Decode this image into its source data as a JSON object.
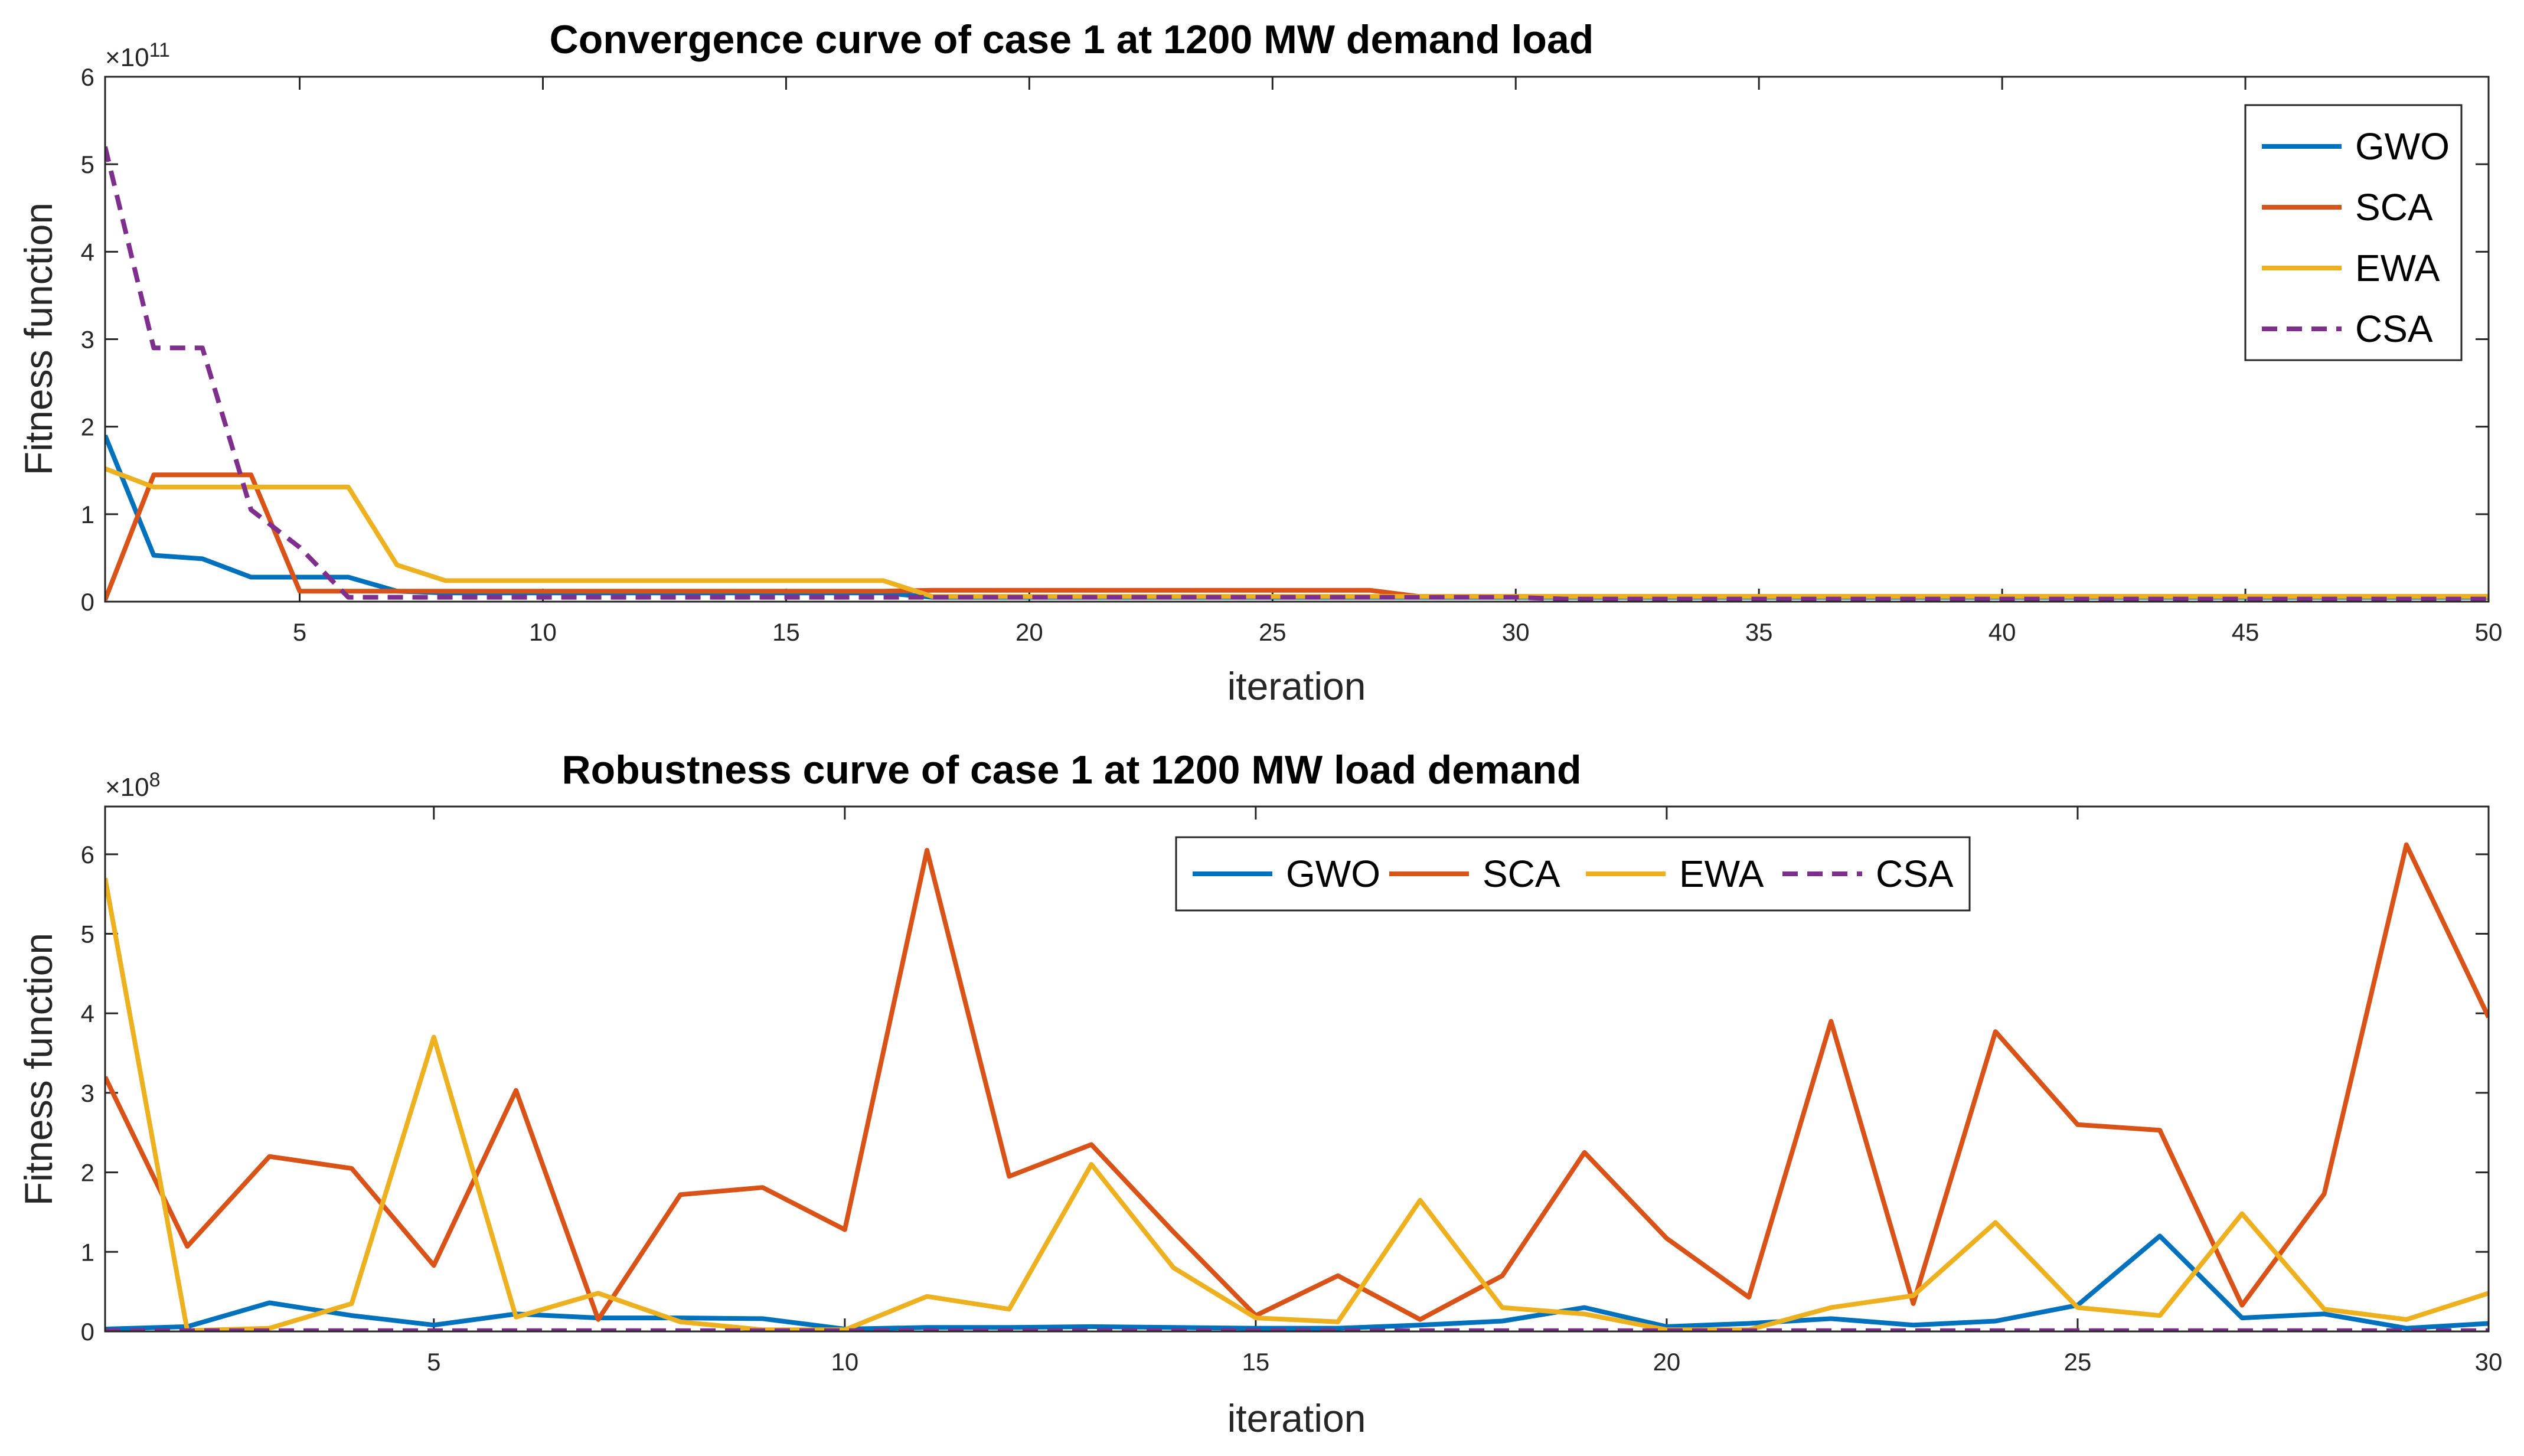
{
  "chart_data": [
    {
      "type": "line",
      "title": "Convergence curve of case 1 at 1200 MW demand load",
      "xlabel": "iteration",
      "ylabel": "Fitness function",
      "exponent_label": "×10",
      "exponent_power": "11",
      "xlim": [
        1,
        50
      ],
      "ylim": [
        0,
        6
      ],
      "xticks": [
        5,
        10,
        15,
        20,
        25,
        30,
        35,
        40,
        45,
        50
      ],
      "yticks": [
        0,
        1,
        2,
        3,
        4,
        5,
        6
      ],
      "legend_position": "top-right",
      "legend_orientation": "vertical",
      "grid": false,
      "x": [
        1,
        2,
        3,
        4,
        5,
        6,
        7,
        8,
        9,
        10,
        11,
        12,
        13,
        14,
        15,
        16,
        17,
        18,
        19,
        20,
        21,
        22,
        23,
        24,
        25,
        26,
        27,
        28,
        29,
        30,
        31,
        32,
        33,
        34,
        35,
        36,
        37,
        38,
        39,
        40,
        41,
        42,
        43,
        44,
        45,
        46,
        47,
        48,
        49,
        50
      ],
      "series": [
        {
          "name": "GWO",
          "color": "#0072BD",
          "dash": false,
          "values": [
            1.9,
            0.53,
            0.49,
            0.28,
            0.28,
            0.28,
            0.12,
            0.1,
            0.1,
            0.1,
            0.1,
            0.1,
            0.1,
            0.1,
            0.1,
            0.1,
            0.1,
            0.05,
            0.05,
            0.05,
            0.05,
            0.05,
            0.05,
            0.05,
            0.05,
            0.05,
            0.05,
            0.05,
            0.05,
            0.05,
            0.05,
            0.05,
            0.05,
            0.05,
            0.05,
            0.05,
            0.05,
            0.05,
            0.05,
            0.05,
            0.05,
            0.05,
            0.05,
            0.05,
            0.05,
            0.05,
            0.05,
            0.05,
            0.05,
            0.05
          ]
        },
        {
          "name": "SCA",
          "color": "#D95319",
          "dash": false,
          "values": [
            0.02,
            1.45,
            1.45,
            1.45,
            0.12,
            0.12,
            0.12,
            0.12,
            0.12,
            0.12,
            0.12,
            0.12,
            0.12,
            0.12,
            0.12,
            0.12,
            0.12,
            0.13,
            0.13,
            0.13,
            0.13,
            0.13,
            0.13,
            0.13,
            0.13,
            0.13,
            0.13,
            0.06,
            0.06,
            0.06,
            0.06,
            0.06,
            0.06,
            0.06,
            0.06,
            0.06,
            0.06,
            0.06,
            0.06,
            0.06,
            0.06,
            0.06,
            0.06,
            0.06,
            0.06,
            0.06,
            0.06,
            0.06,
            0.06,
            0.06
          ]
        },
        {
          "name": "EWA",
          "color": "#EDB120",
          "dash": false,
          "values": [
            1.52,
            1.31,
            1.31,
            1.31,
            1.31,
            1.31,
            0.42,
            0.24,
            0.24,
            0.24,
            0.24,
            0.24,
            0.24,
            0.24,
            0.24,
            0.24,
            0.24,
            0.06,
            0.06,
            0.06,
            0.06,
            0.06,
            0.06,
            0.06,
            0.06,
            0.06,
            0.06,
            0.06,
            0.06,
            0.06,
            0.06,
            0.06,
            0.06,
            0.06,
            0.06,
            0.06,
            0.06,
            0.06,
            0.06,
            0.06,
            0.06,
            0.06,
            0.06,
            0.06,
            0.06,
            0.06,
            0.06,
            0.06,
            0.06,
            0.06
          ]
        },
        {
          "name": "CSA",
          "color": "#7E2F8E",
          "dash": true,
          "values": [
            5.2,
            2.9,
            2.9,
            1.05,
            0.62,
            0.05,
            0.05,
            0.05,
            0.05,
            0.05,
            0.05,
            0.05,
            0.05,
            0.05,
            0.05,
            0.05,
            0.05,
            0.05,
            0.05,
            0.05,
            0.05,
            0.05,
            0.05,
            0.05,
            0.05,
            0.05,
            0.05,
            0.05,
            0.05,
            0.05,
            0.03,
            0.03,
            0.03,
            0.03,
            0.03,
            0.03,
            0.03,
            0.03,
            0.03,
            0.03,
            0.03,
            0.03,
            0.03,
            0.03,
            0.03,
            0.03,
            0.03,
            0.03,
            0.03,
            0.03
          ]
        }
      ]
    },
    {
      "type": "line",
      "title": "Robustness curve of case 1 at 1200 MW load demand",
      "xlabel": "iteration",
      "ylabel": "Fitness function",
      "exponent_label": "×10",
      "exponent_power": "8",
      "xlim": [
        1,
        30
      ],
      "ylim": [
        0,
        6.6
      ],
      "xticks": [
        5,
        10,
        15,
        20,
        25,
        30
      ],
      "yticks": [
        0,
        1,
        2,
        3,
        4,
        5,
        6
      ],
      "legend_position": "top-center",
      "legend_orientation": "horizontal",
      "grid": false,
      "x": [
        1,
        2,
        3,
        4,
        5,
        6,
        7,
        8,
        9,
        10,
        11,
        12,
        13,
        14,
        15,
        16,
        17,
        18,
        19,
        20,
        21,
        22,
        23,
        24,
        25,
        26,
        27,
        28,
        29,
        30
      ],
      "series": [
        {
          "name": "GWO",
          "color": "#0072BD",
          "dash": false,
          "values": [
            0.03,
            0.06,
            0.36,
            0.2,
            0.08,
            0.22,
            0.17,
            0.17,
            0.16,
            0.03,
            0.05,
            0.05,
            0.06,
            0.05,
            0.04,
            0.04,
            0.08,
            0.13,
            0.3,
            0.06,
            0.1,
            0.16,
            0.08,
            0.13,
            0.33,
            1.2,
            0.17,
            0.22,
            0.04,
            0.1
          ]
        },
        {
          "name": "SCA",
          "color": "#D95319",
          "dash": false,
          "values": [
            3.2,
            1.07,
            2.2,
            2.05,
            0.83,
            3.03,
            0.15,
            1.72,
            1.81,
            1.28,
            6.05,
            1.95,
            2.35,
            1.25,
            0.2,
            0.7,
            0.15,
            0.7,
            2.25,
            1.17,
            0.43,
            3.9,
            0.35,
            3.77,
            2.6,
            2.53,
            0.33,
            1.73,
            6.12,
            3.95
          ]
        },
        {
          "name": "EWA",
          "color": "#EDB120",
          "dash": false,
          "values": [
            5.7,
            0.01,
            0.04,
            0.35,
            3.7,
            0.18,
            0.48,
            0.12,
            0.02,
            0.02,
            0.44,
            0.28,
            2.1,
            0.8,
            0.17,
            0.12,
            1.65,
            0.3,
            0.22,
            0.02,
            0.02,
            0.3,
            0.45,
            1.37,
            0.3,
            0.2,
            1.48,
            0.28,
            0.15,
            0.48
          ]
        },
        {
          "name": "CSA",
          "color": "#7E2F8E",
          "dash": true,
          "values": [
            0.01,
            0.01,
            0.01,
            0.01,
            0.01,
            0.01,
            0.01,
            0.01,
            0.01,
            0.01,
            0.01,
            0.01,
            0.01,
            0.01,
            0.01,
            0.01,
            0.01,
            0.01,
            0.01,
            0.01,
            0.01,
            0.01,
            0.01,
            0.01,
            0.01,
            0.01,
            0.01,
            0.01,
            0.01,
            0.01
          ]
        }
      ]
    }
  ]
}
